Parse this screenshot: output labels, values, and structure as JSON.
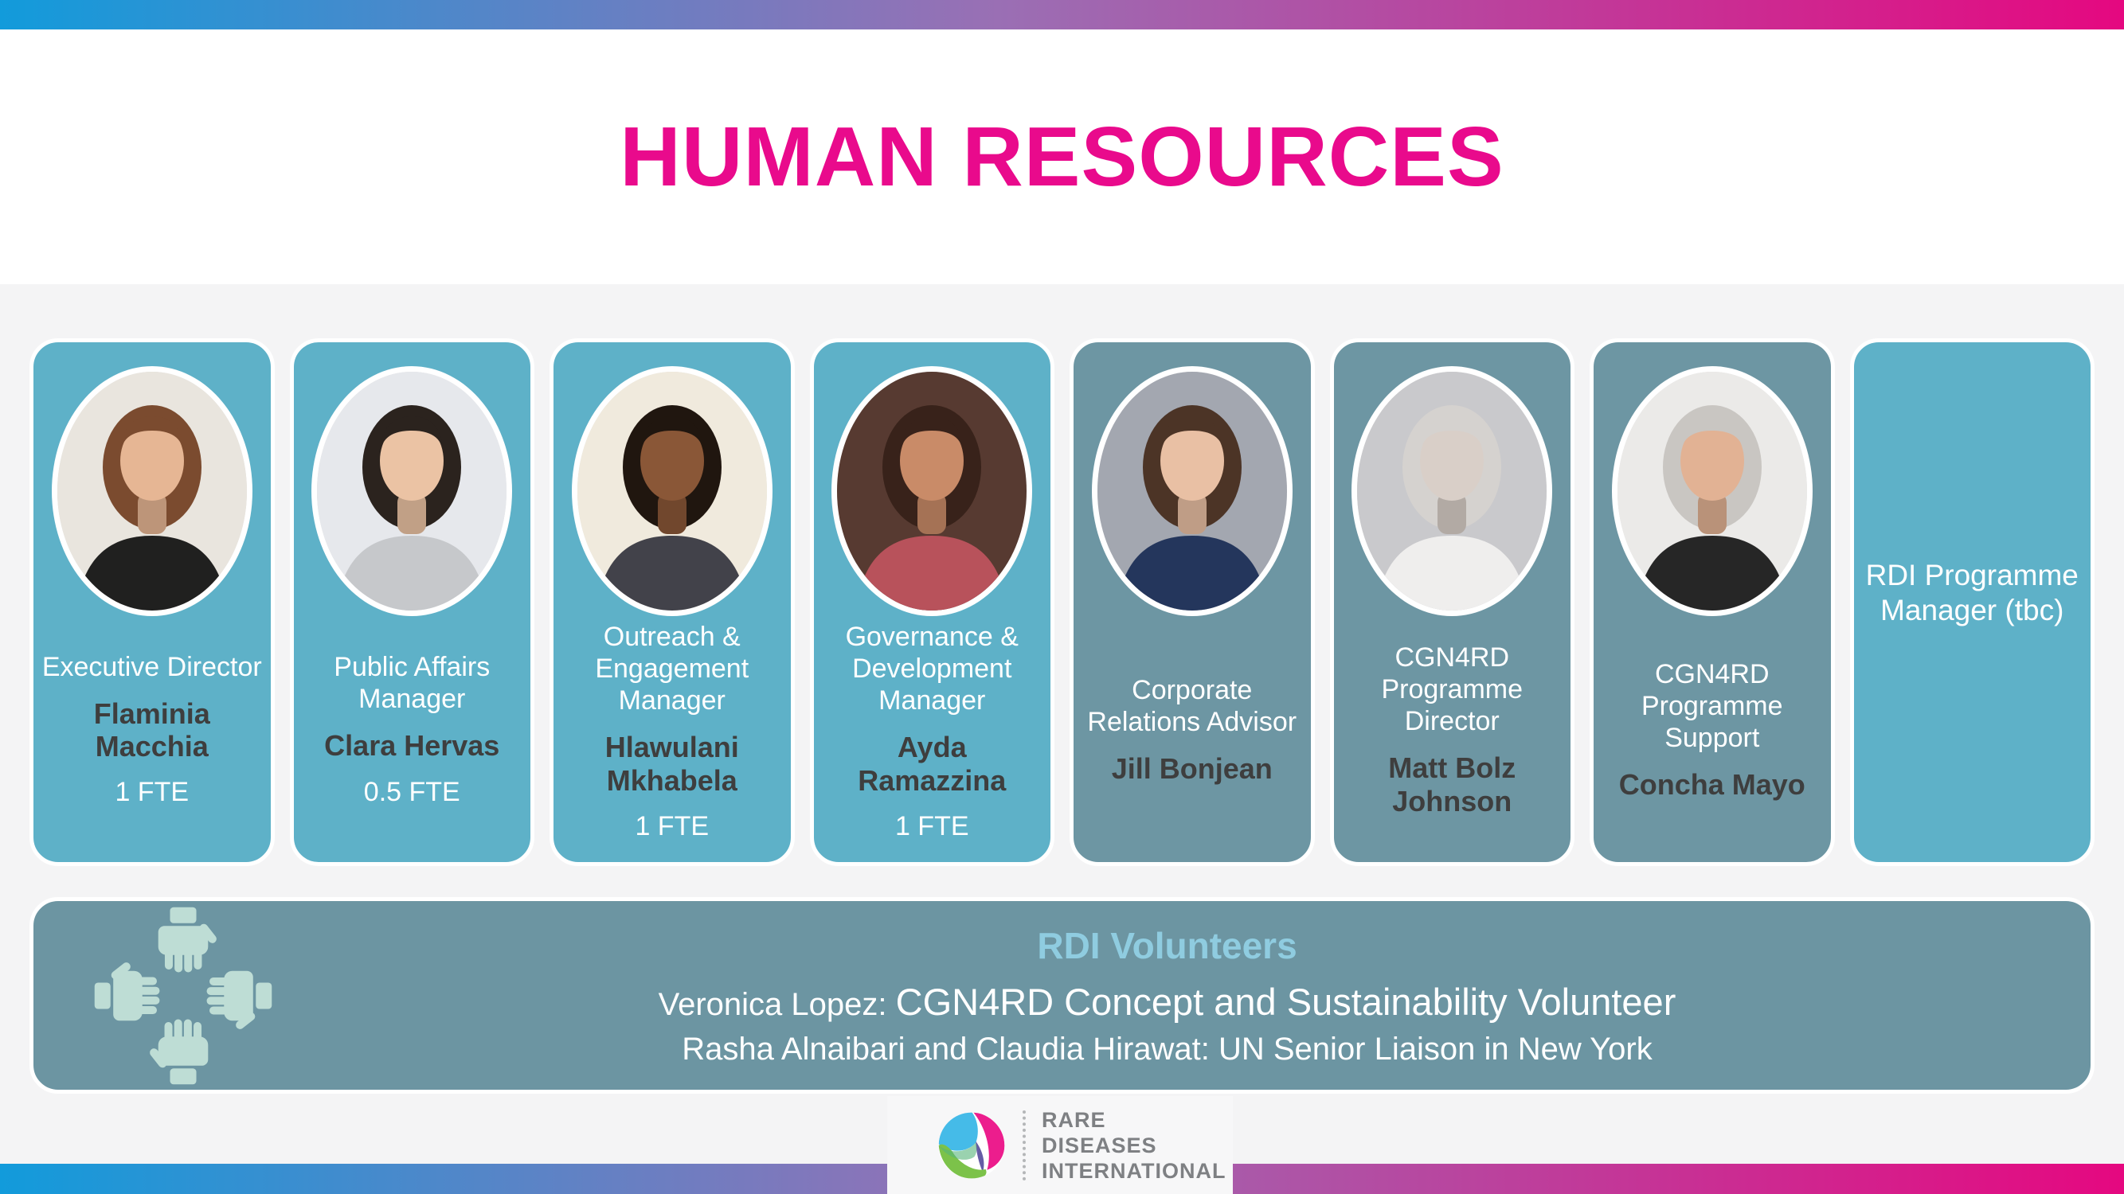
{
  "header": {
    "title": "HUMAN RESOURCES"
  },
  "team": {
    "cards": [
      {
        "role": "Executive Director",
        "name": "Flaminia Macchia",
        "fte": "1 FTE",
        "variant": "light",
        "photo": {
          "bg": "#E9E5DE",
          "hair": "#7B4B2F",
          "skin": "#E6B694",
          "shirt": "#20201F"
        }
      },
      {
        "role": "Public Affairs Manager",
        "name": "Clara Hervas",
        "fte": "0.5 FTE",
        "variant": "light",
        "photo": {
          "bg": "#E6E8EC",
          "hair": "#2B231E",
          "skin": "#EBC3A4",
          "shirt": "#C6C8CB"
        }
      },
      {
        "role": "Outreach & Engagement Manager",
        "name": "Hlawulani Mkhabela",
        "fte": "1 FTE",
        "variant": "light",
        "photo": {
          "bg": "#F0EADD",
          "hair": "#20160F",
          "skin": "#8A5737",
          "shirt": "#42424A"
        }
      },
      {
        "role": "Governance & Development Manager",
        "name": "Ayda Ramazzina",
        "fte": "1 FTE",
        "variant": "light",
        "photo": {
          "bg": "#573A31",
          "hair": "#38221A",
          "skin": "#C98B68",
          "shirt": "#B8525B"
        }
      },
      {
        "role": "Corporate Relations Advisor",
        "name": "Jill Bonjean",
        "fte": "",
        "variant": "dark",
        "photo": {
          "bg": "#A3A7B0",
          "hair": "#4C3426",
          "skin": "#E9C0A4",
          "shirt": "#24365C"
        }
      },
      {
        "role": "CGN4RD Programme Director",
        "name": "Matt Bolz Johnson",
        "fte": "",
        "variant": "dark",
        "photo": {
          "bg": "#C9C9CC",
          "hair": "#D5D2CF",
          "skin": "#D9CFC8",
          "shirt": "#EFEEED"
        }
      },
      {
        "role": "CGN4RD Programme Support",
        "name": "Concha Mayo",
        "fte": "",
        "variant": "dark",
        "photo": {
          "bg": "#EBEAE8",
          "hair": "#C9C6C2",
          "skin": "#E2B294",
          "shirt": "#262626"
        }
      },
      {
        "role": "RDI Programme Manager (tbc)",
        "name": "",
        "fte": "",
        "variant": "light",
        "photo": null
      }
    ]
  },
  "volunteers": {
    "icon": "four-hands-icon",
    "heading": "RDI Volunteers",
    "line1_prefix": "Veronica Lopez: ",
    "line1_main": "CGN4RD Concept and Sustainability Volunteer",
    "line2": "Rasha Alnaibari and Claudia Hirawat: UN Senior Liaison in New York"
  },
  "footer": {
    "logo_icon": "rdi-logo-icon",
    "logo_lines": [
      "RARE",
      "DISEASES",
      "INTERNATIONAL"
    ]
  },
  "colors": {
    "title_pink": "#E90A8C",
    "gradient_blue": "#129BDB",
    "gradient_purple": "#9A6FB4",
    "gradient_pink": "#E50880",
    "card_teal_light": "#5EB1C8",
    "card_teal_dark": "#6D96A3",
    "volunteers_bg": "#6C95A2",
    "volunteers_heading": "#8FCCE0",
    "name_text": "#3E3E3E",
    "hands_icon": "#BEDDD5",
    "lower_background": "#F4F4F5",
    "logo_text": "#7E8083",
    "logo_box_bg": "#F7F7F8"
  }
}
